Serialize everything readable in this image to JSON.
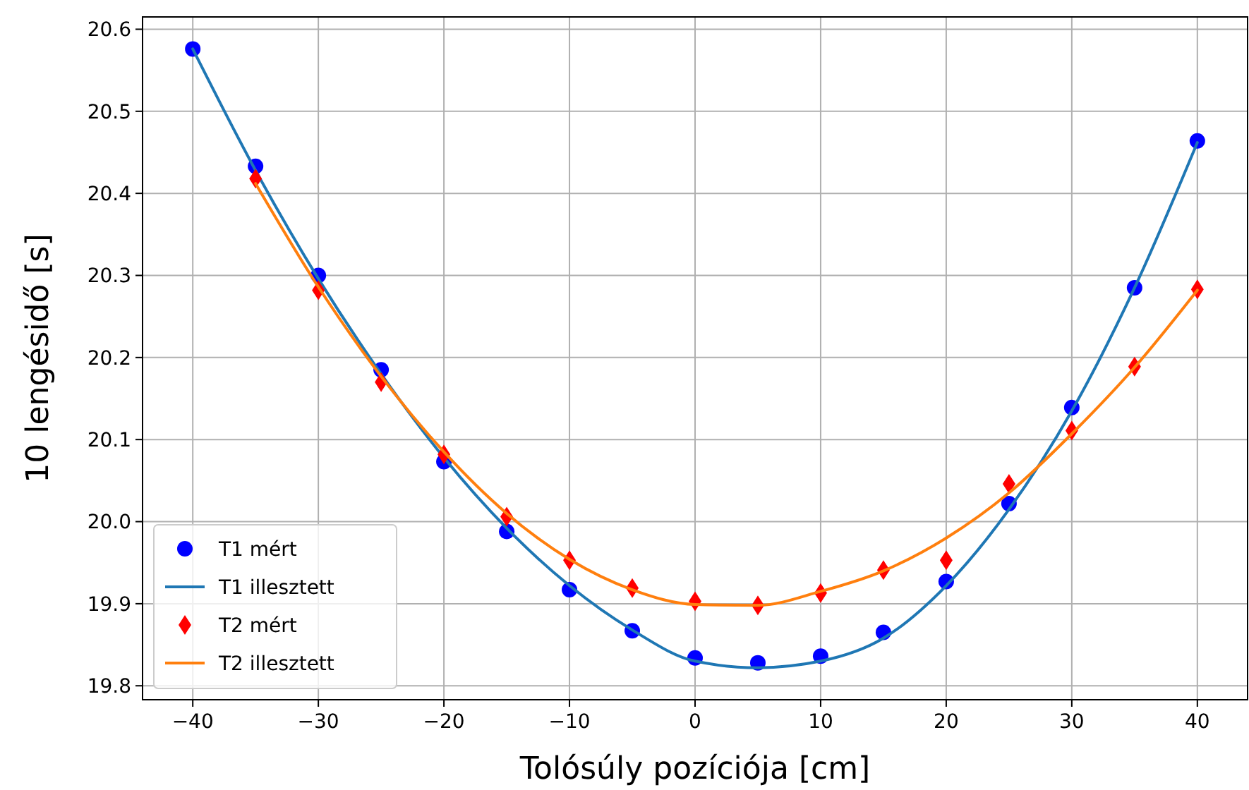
{
  "chart_data": {
    "type": "scatter",
    "xlabel": "Tolósúly pozíciója [cm]",
    "ylabel": "10 lengésidő [s]",
    "xlim": [
      -44,
      44
    ],
    "ylim": [
      19.783,
      20.615
    ],
    "xticks": [
      {
        "value": -40,
        "label": "−40"
      },
      {
        "value": -30,
        "label": "−30"
      },
      {
        "value": -20,
        "label": "−20"
      },
      {
        "value": -10,
        "label": "−10"
      },
      0,
      10,
      20,
      30,
      40
    ],
    "yticks": [
      {
        "value": 19.8,
        "label": "19.8"
      },
      {
        "value": 19.9,
        "label": "19.9"
      },
      {
        "value": 20.0,
        "label": "20.0"
      },
      {
        "value": 20.1,
        "label": "20.1"
      },
      {
        "value": 20.2,
        "label": "20.2"
      },
      {
        "value": 20.3,
        "label": "20.3"
      },
      {
        "value": 20.4,
        "label": "20.4"
      },
      {
        "value": 20.5,
        "label": "20.5"
      },
      {
        "value": 20.6,
        "label": "20.6"
      }
    ],
    "grid": true,
    "legend": "bottom left",
    "series": [
      {
        "name": "T1 mért",
        "marker": "circle",
        "color": "#0000ff",
        "x": [
          -40,
          -35,
          -30,
          -25,
          -20,
          -15,
          -10,
          -5,
          0,
          5,
          10,
          15,
          20,
          25,
          30,
          35,
          40
        ],
        "values": [
          20.576,
          20.433,
          20.3,
          20.185,
          20.073,
          19.988,
          19.917,
          19.867,
          19.834,
          19.828,
          19.836,
          19.865,
          19.927,
          20.022,
          20.139,
          20.285,
          20.464
        ]
      },
      {
        "name": "T1 illesztett",
        "type": "line",
        "marker": "none",
        "color": "#1f77b4",
        "x": [
          -40,
          -35,
          -30,
          -25,
          -20,
          -15,
          -10,
          -5,
          0,
          5,
          10,
          15,
          20,
          25,
          30,
          35,
          40
        ],
        "values": [
          20.576,
          20.428,
          20.296,
          20.18,
          20.078,
          19.992,
          19.922,
          19.868,
          19.83,
          19.822,
          19.83,
          19.858,
          19.922,
          20.015,
          20.135,
          20.285,
          20.462
        ]
      },
      {
        "name": "T2 mért",
        "marker": "diamond",
        "color": "#ff0000",
        "x": [
          -35,
          -30,
          -25,
          -20,
          -15,
          -10,
          -5,
          0,
          5,
          10,
          15,
          20,
          25,
          30,
          35,
          40
        ],
        "values": [
          20.418,
          20.282,
          20.17,
          20.082,
          20.006,
          19.953,
          19.919,
          19.903,
          19.898,
          19.913,
          19.941,
          19.953,
          20.046,
          20.111,
          20.189,
          20.283
        ]
      },
      {
        "name": "T2 illesztett",
        "type": "line",
        "marker": "none",
        "color": "#ff7f0e",
        "x": [
          -35,
          -30,
          -25,
          -20,
          -15,
          -10,
          -5,
          0,
          5,
          10,
          15,
          20,
          25,
          30,
          35,
          40
        ],
        "values": [
          20.412,
          20.286,
          20.177,
          20.085,
          20.01,
          19.954,
          19.917,
          19.899,
          19.898,
          19.915,
          19.94,
          19.98,
          20.035,
          20.107,
          20.188,
          20.282
        ]
      }
    ]
  }
}
